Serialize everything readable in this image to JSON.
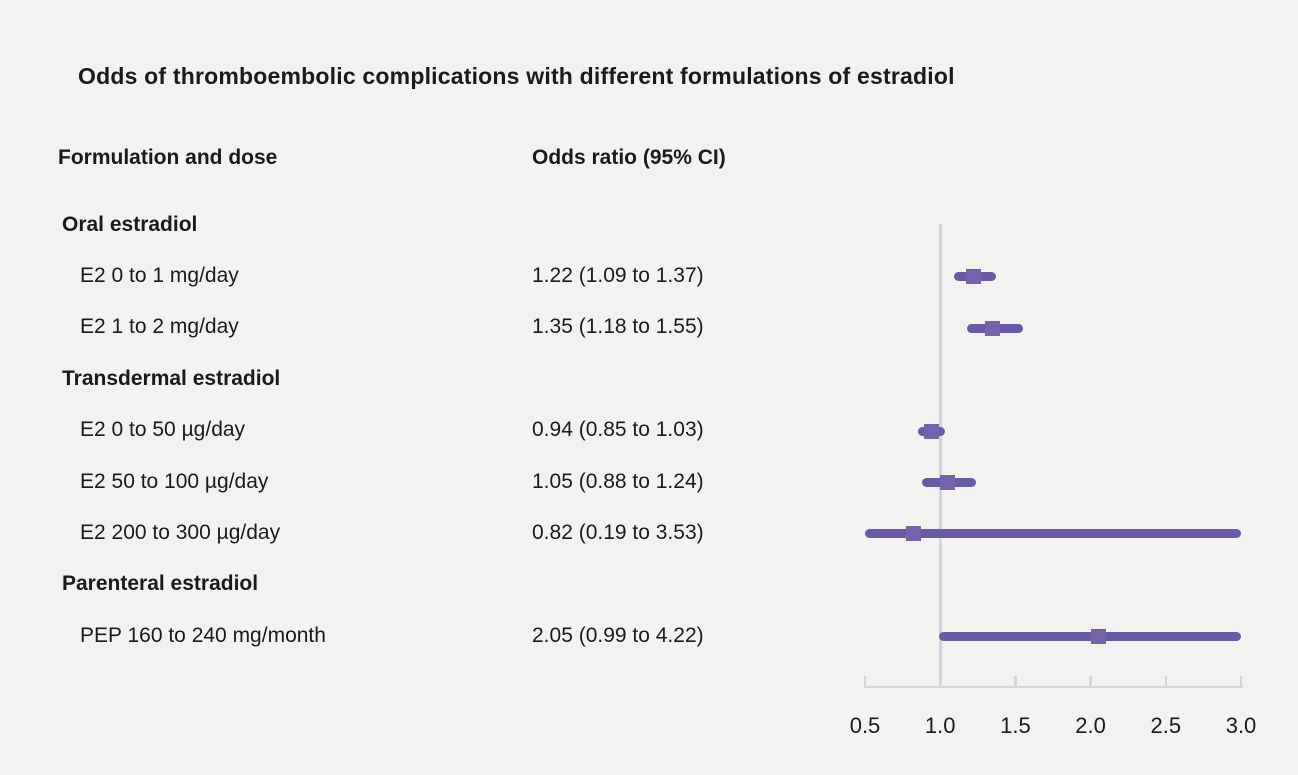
{
  "title": "Odds of thromboembolic complications with different formulations of estradiol",
  "columns": {
    "formulation": "Formulation and dose",
    "odds_ratio": "Odds ratio (95% CI)"
  },
  "chart_data": {
    "type": "forest",
    "title": "Odds of thromboembolic complications with different formulations of estradiol",
    "x_axis": {
      "range": [
        0.5,
        3.0
      ],
      "tick_values": [
        0.5,
        1.0,
        1.5,
        2.0,
        2.5,
        3.0
      ],
      "tick_labels": [
        "0.5",
        "1.0",
        "1.5",
        "2.0",
        "2.5",
        "3.0"
      ],
      "reference_line": 1.0,
      "grid": false
    },
    "rows": [
      {
        "type": "section",
        "label": "Oral estradiol"
      },
      {
        "type": "item",
        "label": "E2 0 to 1 mg/day",
        "value_text": "1.22 (1.09 to 1.37)",
        "estimate": 1.22,
        "ci_low": 1.09,
        "ci_high": 1.37
      },
      {
        "type": "item",
        "label": "E2 1 to 2 mg/day",
        "value_text": "1.35 (1.18 to 1.55)",
        "estimate": 1.35,
        "ci_low": 1.18,
        "ci_high": 1.55
      },
      {
        "type": "section",
        "label": "Transdermal estradiol"
      },
      {
        "type": "item",
        "label": "E2 0 to 50 µg/day",
        "value_text": "0.94 (0.85 to 1.03)",
        "estimate": 0.94,
        "ci_low": 0.85,
        "ci_high": 1.03
      },
      {
        "type": "item",
        "label": "E2 50 to 100 µg/day",
        "value_text": "1.05 (0.88 to 1.24)",
        "estimate": 1.05,
        "ci_low": 0.88,
        "ci_high": 1.24
      },
      {
        "type": "item",
        "label": "E2 200 to 300 µg/day",
        "value_text": "0.82 (0.19 to 3.53)",
        "estimate": 0.82,
        "ci_low": 0.19,
        "ci_high": 3.53
      },
      {
        "type": "section",
        "label": "Parenteral estradiol"
      },
      {
        "type": "item",
        "label": "PEP 160 to 240 mg/month",
        "value_text": "2.05 (0.99 to 4.22)",
        "estimate": 2.05,
        "ci_low": 0.99,
        "ci_high": 4.22
      }
    ],
    "colors": {
      "bar": "#6a59a3",
      "marker": "#7263aa",
      "axis": "#d1d6de",
      "text": "#1a1a1c",
      "background": "#f2f2f1"
    }
  }
}
